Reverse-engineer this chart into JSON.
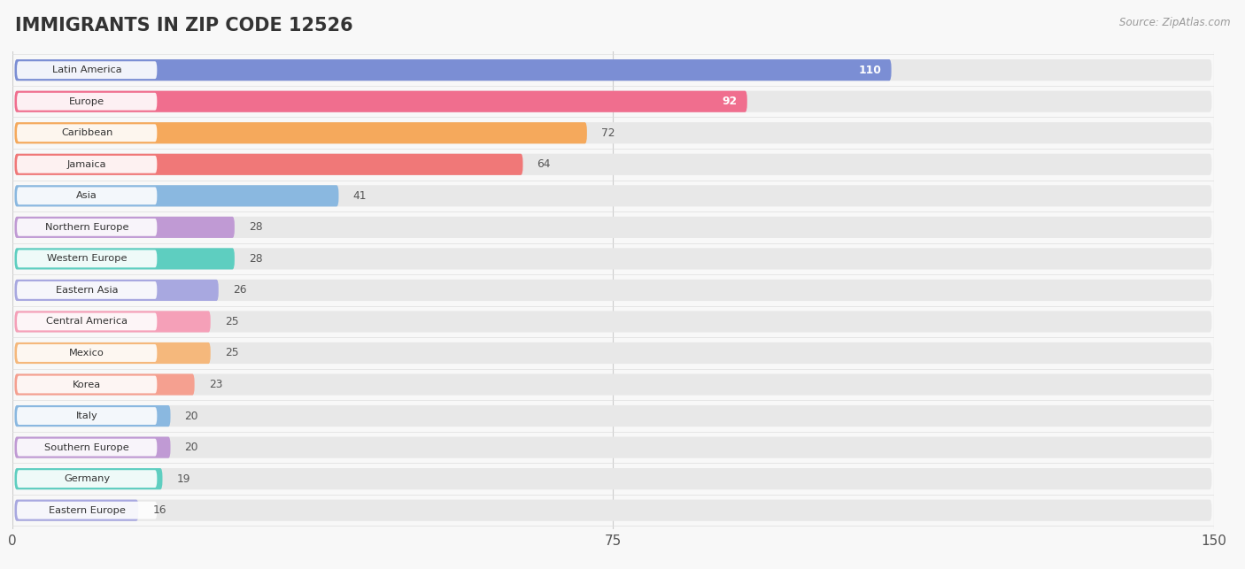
{
  "title": "IMMIGRANTS IN ZIP CODE 12526",
  "source": "Source: ZipAtlas.com",
  "categories": [
    "Latin America",
    "Europe",
    "Caribbean",
    "Jamaica",
    "Asia",
    "Northern Europe",
    "Western Europe",
    "Eastern Asia",
    "Central America",
    "Mexico",
    "Korea",
    "Italy",
    "Southern Europe",
    "Germany",
    "Eastern Europe"
  ],
  "values": [
    110,
    92,
    72,
    64,
    41,
    28,
    28,
    26,
    25,
    25,
    23,
    20,
    20,
    19,
    16
  ],
  "bar_colors": [
    "#7b8ed4",
    "#f06e8e",
    "#f5a95c",
    "#f07878",
    "#8ab8e0",
    "#c09ad4",
    "#5ecec0",
    "#a8a8e0",
    "#f5a0b8",
    "#f5b87c",
    "#f5a090",
    "#8ab8e0",
    "#c09ad4",
    "#5ecec0",
    "#a8a8e0"
  ],
  "xlim": [
    0,
    150
  ],
  "xticks": [
    0,
    75,
    150
  ],
  "background_color": "#f8f8f8",
  "bar_background_color": "#e8e8e8",
  "title_fontsize": 15,
  "axis_fontsize": 11
}
